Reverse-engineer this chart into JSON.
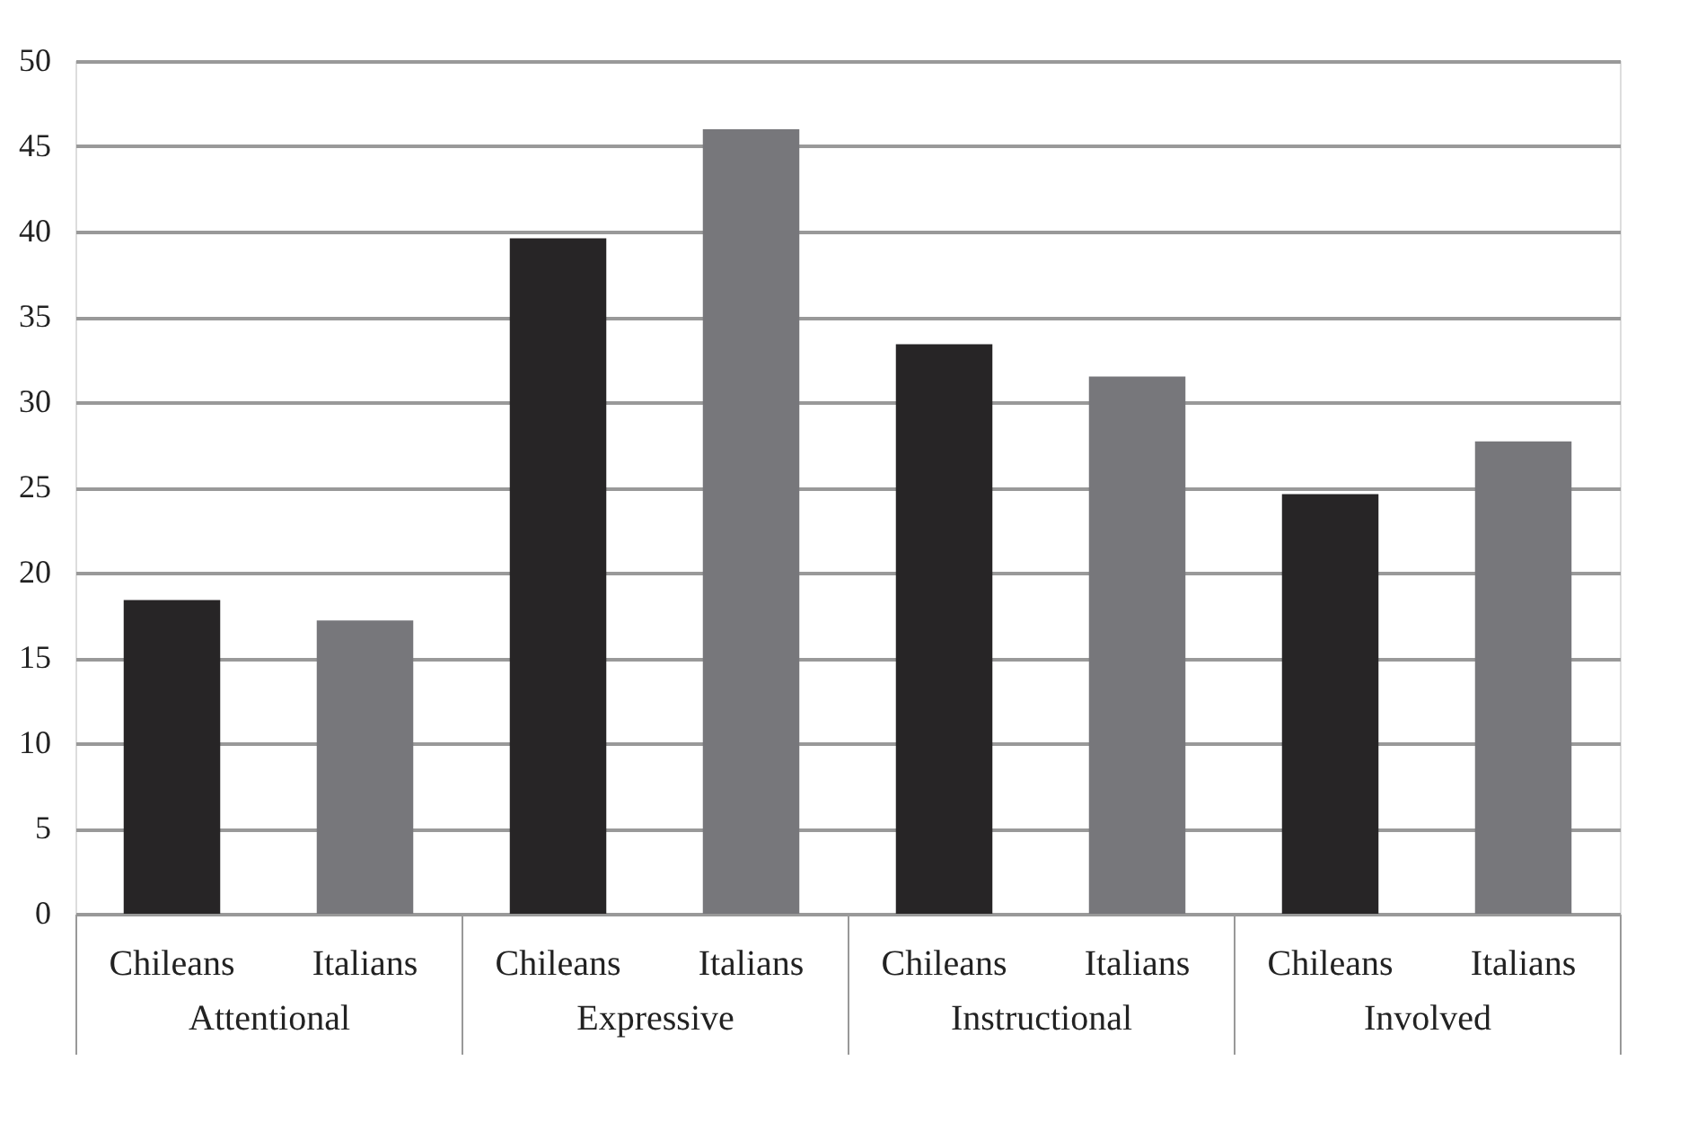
{
  "chart_data": {
    "type": "bar",
    "categories": [
      "Attentional",
      "Expressive",
      "Instructional",
      "Involved"
    ],
    "series": [
      {
        "name": "Chileans",
        "color": "#272526",
        "values": [
          18.4,
          39.6,
          33.4,
          24.6
        ]
      },
      {
        "name": "Italians",
        "color": "#77777b",
        "values": [
          17.2,
          46.0,
          31.5,
          27.7
        ]
      }
    ],
    "ylim": [
      0,
      50
    ],
    "yticks": [
      0,
      5,
      10,
      15,
      20,
      25,
      30,
      35,
      40,
      45,
      50
    ],
    "grid": "y"
  }
}
